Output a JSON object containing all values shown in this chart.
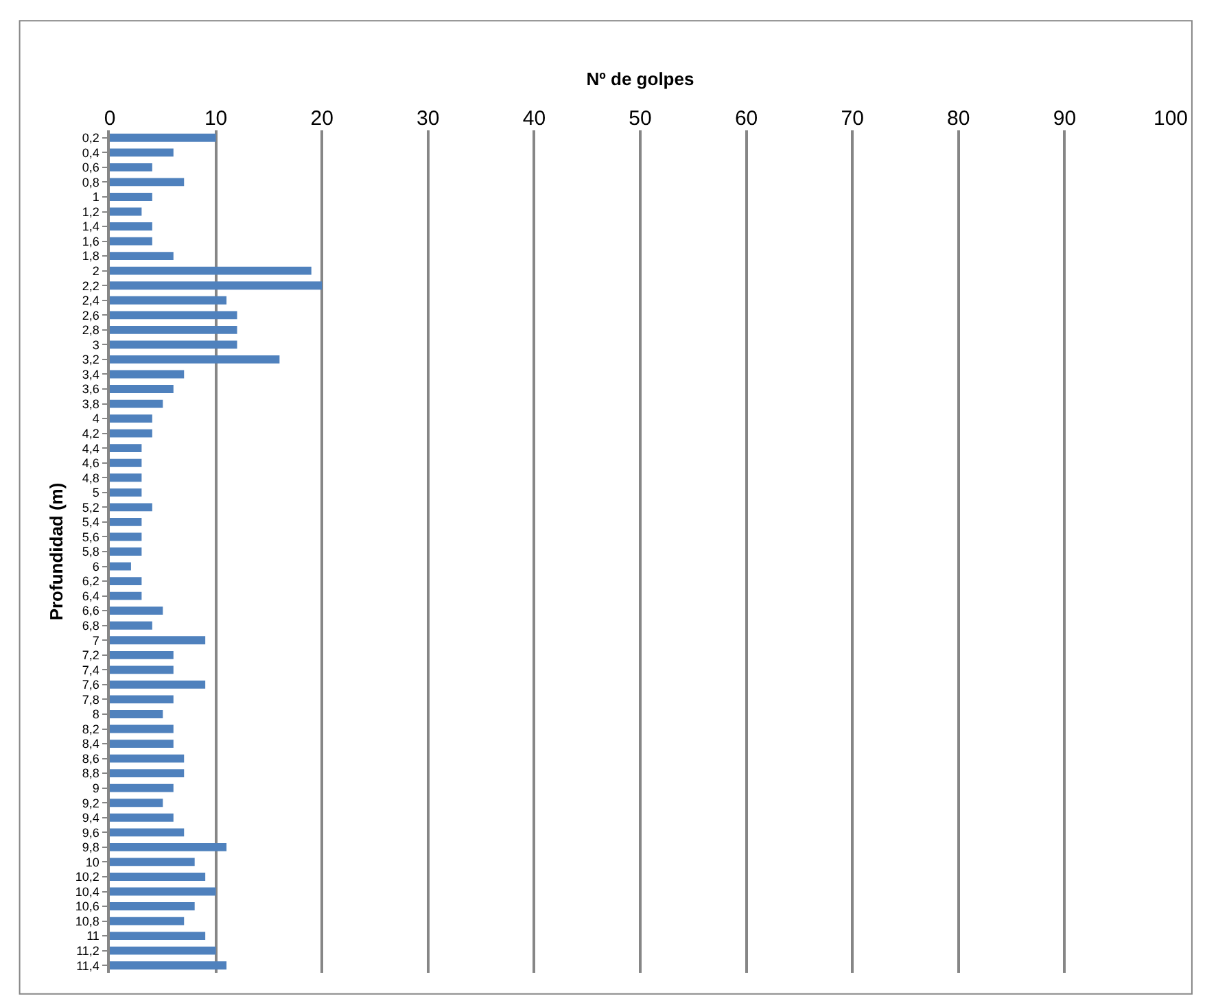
{
  "chart_data": {
    "type": "bar",
    "orientation": "horizontal",
    "xlabel": "Nº de golpes",
    "ylabel": "Profundidad (m)",
    "categories": [
      "0,2",
      "0,4",
      "0,6",
      "0,8",
      "1",
      "1,2",
      "1,4",
      "1,6",
      "1,8",
      "2",
      "2,2",
      "2,4",
      "2,6",
      "2,8",
      "3",
      "3,2",
      "3,4",
      "3,6",
      "3,8",
      "4",
      "4,2",
      "4,4",
      "4,6",
      "4,8",
      "5",
      "5,2",
      "5,4",
      "5,6",
      "5,8",
      "6",
      "6,2",
      "6,4",
      "6,6",
      "6,8",
      "7",
      "7,2",
      "7,4",
      "7,6",
      "7,8",
      "8",
      "8,2",
      "8,4",
      "8,6",
      "8,8",
      "9",
      "9,2",
      "9,4",
      "9,6",
      "9,8",
      "10",
      "10,2",
      "10,4",
      "10,6",
      "10,8",
      "11",
      "11,2",
      "11,4"
    ],
    "values": [
      10,
      6,
      4,
      7,
      4,
      3,
      4,
      4,
      6,
      19,
      20,
      11,
      12,
      12,
      12,
      16,
      7,
      6,
      5,
      4,
      4,
      3,
      3,
      3,
      3,
      4,
      3,
      3,
      3,
      2,
      3,
      3,
      5,
      4,
      9,
      6,
      6,
      9,
      6,
      5,
      6,
      6,
      7,
      7,
      6,
      5,
      6,
      7,
      11,
      8,
      9,
      10,
      8,
      7,
      9,
      10,
      11
    ],
    "color": "#4f81bd",
    "xlim": [
      0,
      100
    ],
    "xticks": [
      0,
      10,
      20,
      30,
      40,
      50,
      60,
      70,
      80,
      90,
      100
    ],
    "grid": "x",
    "legend": false
  }
}
